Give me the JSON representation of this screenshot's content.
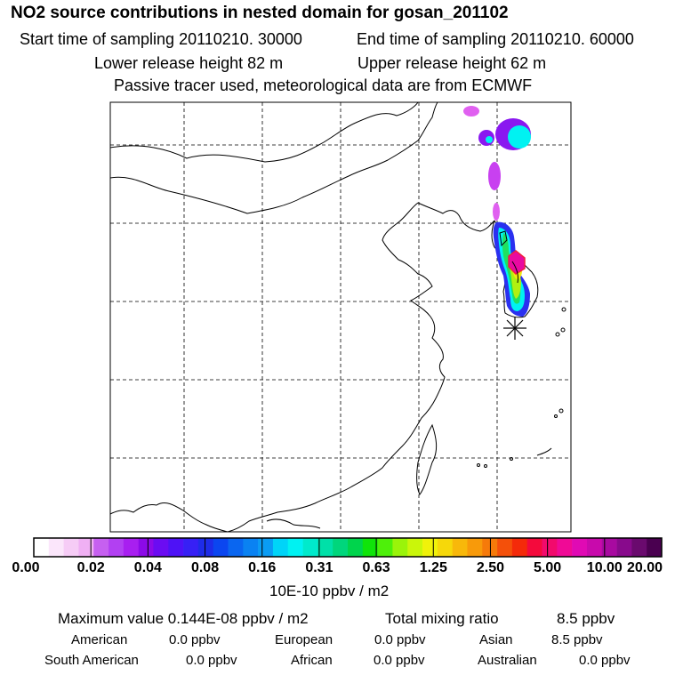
{
  "header": {
    "title": "NO2 source contributions in nested domain for gosan_201102",
    "start_time": "Start time of sampling 20110210. 30000",
    "end_time": "End time of sampling 20110210. 60000",
    "lower_release": "Lower release height   82 m",
    "upper_release": "Upper release height   62 m",
    "tracer_note": "Passive tracer used, meteorological data are from ECMWF"
  },
  "colorbar": {
    "ticks": [
      "0.00",
      "0.02",
      "0.04",
      "0.08",
      "0.16",
      "0.31",
      "0.63",
      "1.25",
      "2.50",
      "5.00",
      "10.00",
      "20.00"
    ],
    "unit": "10E-10 ppbv / m2",
    "colors": [
      "#ffffff",
      "#fbe6fb",
      "#f6ccf6",
      "#f0b0f4",
      "#c660f0",
      "#b240f2",
      "#a81ff0",
      "#8c0ae8",
      "#6b0cf2",
      "#4e12f6",
      "#3720f5",
      "#1e2ce8",
      "#0b46f0",
      "#0a66f0",
      "#0a82f2",
      "#0a9cf4",
      "#00d4f8",
      "#00f2f2",
      "#00eacc",
      "#00e0a8",
      "#00d67c",
      "#00d44c",
      "#10e40a",
      "#4ef00a",
      "#9af40a",
      "#caf60a",
      "#f0f20a",
      "#f6d80a",
      "#f8b80a",
      "#f89a0a",
      "#f67a0a",
      "#f4500a",
      "#f42a0a",
      "#f40a3c",
      "#f20a6c",
      "#f00a96",
      "#e00ab4",
      "#c80aac",
      "#a80aa0",
      "#880a8c",
      "#6a0a6e",
      "#4a0050"
    ]
  },
  "stats": {
    "max_label": "Maximum value  0.144E-08 ppbv / m2",
    "total_label": "Total mixing ratio",
    "total_value": "8.5 ppbv"
  },
  "regions": [
    {
      "name": "American",
      "value": "0.0 ppbv"
    },
    {
      "name": "European",
      "value": "0.0 ppbv"
    },
    {
      "name": "Asian",
      "value": "8.5 ppbv"
    },
    {
      "name": "South American",
      "value": "0.0 ppbv"
    },
    {
      "name": "African",
      "value": "0.0 ppbv"
    },
    {
      "name": "Australian",
      "value": "0.0 ppbv"
    }
  ],
  "map": {
    "receptor_icon": "asterisk-icon",
    "plume_colors": {
      "violet": "#c840f0",
      "magenta": "#e060f0",
      "purple": "#8a18f0",
      "blue": "#2a30f0",
      "cyan": "#00f2f2",
      "green": "#20e060",
      "lime": "#b0f010",
      "yellow": "#f0ea10",
      "red": "#f0203c",
      "pink": "#e80aa0"
    }
  }
}
